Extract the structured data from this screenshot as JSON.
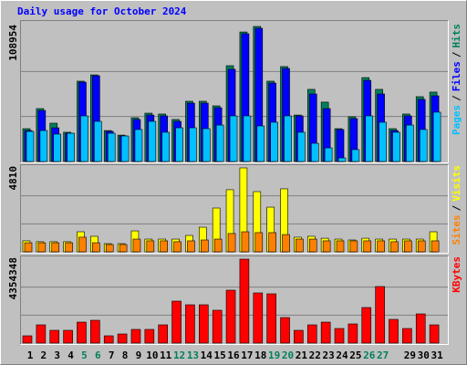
{
  "title": "Daily usage for October 2024",
  "legend_separator": "/",
  "chart_data": [
    {
      "type": "bar",
      "ylim": [
        0,
        108954
      ],
      "yticks": [
        108954
      ],
      "series": [
        {
          "name": "Pages",
          "color": "#00c0ff",
          "values": [
            24300,
            25000,
            22100,
            22800,
            36800,
            32400,
            22800,
            20600,
            25800,
            32400,
            23600,
            27200,
            27200,
            26500,
            29400,
            36800,
            36800,
            28700,
            31700,
            36800,
            23600,
            14700,
            11000,
            2900,
            9600,
            36800,
            31700,
            23600,
            29400,
            25800,
            39800
          ]
        },
        {
          "name": "Files",
          "color": "#0000ff",
          "values": [
            25000,
            41200,
            27200,
            22800,
            64000,
            69200,
            24300,
            20600,
            33900,
            37500,
            36800,
            32400,
            47100,
            47100,
            43400,
            74400,
            103100,
            107500,
            63300,
            75100,
            36800,
            54500,
            42700,
            25800,
            34600,
            65500,
            54500,
            25000,
            36800,
            50100,
            53000
          ]
        },
        {
          "name": "Hits",
          "color": "#00805c",
          "values": [
            26500,
            42700,
            30900,
            23600,
            64800,
            69900,
            25000,
            21300,
            35300,
            39000,
            38300,
            33900,
            48600,
            48600,
            44900,
            77300,
            104500,
            108954,
            64800,
            76600,
            37500,
            58200,
            47900,
            26500,
            36100,
            67700,
            58200,
            26500,
            38300,
            52300,
            56000
          ]
        }
      ]
    },
    {
      "type": "bar",
      "ylim": [
        0,
        4810
      ],
      "yticks": [
        4810
      ],
      "series": [
        {
          "name": "Sites",
          "color": "#ff8000",
          "values": [
            520,
            520,
            520,
            520,
            840,
            520,
            420,
            420,
            730,
            630,
            630,
            580,
            630,
            680,
            730,
            1050,
            1150,
            1100,
            1100,
            990,
            730,
            730,
            630,
            630,
            630,
            630,
            630,
            580,
            630,
            630,
            630
          ]
        },
        {
          "name": "Visits",
          "color": "#ffff00",
          "values": [
            630,
            580,
            580,
            580,
            1150,
            890,
            470,
            470,
            1200,
            730,
            730,
            730,
            940,
            1410,
            2510,
            3560,
            4810,
            3450,
            2560,
            3610,
            840,
            890,
            780,
            730,
            680,
            780,
            730,
            730,
            730,
            730,
            1150
          ]
        }
      ]
    },
    {
      "type": "bar",
      "ylim": [
        0,
        4354348
      ],
      "yticks": [
        4354348
      ],
      "categories": [
        "1",
        "2",
        "3",
        "4",
        "5",
        "6",
        "7",
        "8",
        "9",
        "10",
        "11",
        "12",
        "13",
        "14",
        "15",
        "16",
        "17",
        "18",
        "19",
        "20",
        "21",
        "22",
        "23",
        "24",
        "25",
        "26",
        "27",
        null,
        "29",
        "30",
        "31"
      ],
      "category_colors": [
        "#000000",
        "#000000",
        "#000000",
        "#000000",
        "#00805c",
        "#00805c",
        "#000000",
        "#000000",
        "#000000",
        "#000000",
        "#000000",
        "#00805c",
        "#00805c",
        "#000000",
        "#000000",
        "#000000",
        "#000000",
        "#000000",
        "#00805c",
        "#00805c",
        "#000000",
        "#000000",
        "#000000",
        "#000000",
        "#000000",
        "#00805c",
        "#00805c",
        "#000000",
        "#000000",
        "#000000",
        "#000000"
      ],
      "series": [
        {
          "name": "KBytes",
          "color": "#ff0000",
          "values": [
            378600,
            946600,
            662600,
            662600,
            1088600,
            1183300,
            378600,
            473300,
            710000,
            710000,
            946600,
            2177200,
            1987900,
            1987900,
            1703900,
            2745100,
            4354348,
            2603200,
            2555800,
            1325200,
            662600,
            946600,
            1088600,
            757300,
            993900,
            1845900,
            2934500,
            1230600,
            757300,
            1514600,
            946600
          ]
        }
      ]
    }
  ]
}
